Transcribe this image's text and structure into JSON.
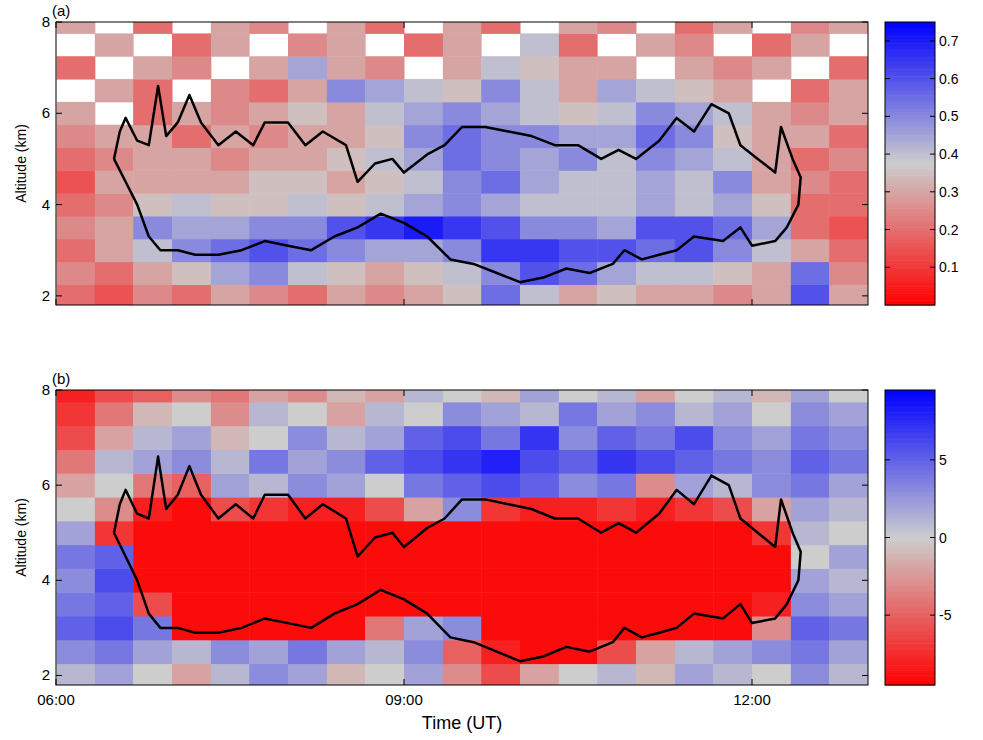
{
  "chart_data": [
    {
      "type": "heatmap",
      "panel": "(a)",
      "ylabel": "Altitude (km)",
      "xlim": [
        6,
        13
      ],
      "ylim": [
        1.8,
        8
      ],
      "xticks": [
        {
          "value": 6,
          "label": "06:00"
        },
        {
          "value": 9,
          "label": "09:00"
        },
        {
          "value": 12,
          "label": "12:00"
        }
      ],
      "yticks": [
        2,
        4,
        6,
        8
      ],
      "tick_labels": "y",
      "x": [
        6.17,
        6.5,
        6.83,
        7.17,
        7.5,
        7.83,
        8.17,
        8.5,
        8.83,
        9.17,
        9.5,
        9.83,
        10.17,
        10.5,
        10.83,
        11.17,
        11.5,
        11.83,
        12.17,
        12.5,
        12.83
      ],
      "y": [
        2,
        2.5,
        3,
        3.5,
        4,
        4.5,
        5,
        5.5,
        6,
        6.5,
        7,
        7.5,
        8
      ],
      "z": [
        [
          0.2,
          0.15,
          0.25,
          0.2,
          0.3,
          0.25,
          0.2,
          0.3,
          0.25,
          0.3,
          0.35,
          0.55,
          0.4,
          0.3,
          0.35,
          0.3,
          0.3,
          0.25,
          0.3,
          0.6,
          0.3
        ],
        [
          0.25,
          0.2,
          0.3,
          0.35,
          0.45,
          0.5,
          0.4,
          0.35,
          0.3,
          0.35,
          0.4,
          0.5,
          0.6,
          0.55,
          0.45,
          0.4,
          0.4,
          0.35,
          0.3,
          0.55,
          0.25
        ],
        [
          0.2,
          0.3,
          0.4,
          0.5,
          0.55,
          0.6,
          0.55,
          0.5,
          0.45,
          0.45,
          0.5,
          0.65,
          0.65,
          0.6,
          0.6,
          0.55,
          0.6,
          0.5,
          0.4,
          0.3,
          0.2
        ],
        [
          0.25,
          0.3,
          0.5,
          0.45,
          0.45,
          0.5,
          0.5,
          0.6,
          0.65,
          0.7,
          0.65,
          0.6,
          0.5,
          0.5,
          0.45,
          0.6,
          0.6,
          0.55,
          0.45,
          0.2,
          0.15
        ],
        [
          0.2,
          0.25,
          0.35,
          0.4,
          0.35,
          0.35,
          0.4,
          0.35,
          0.4,
          0.45,
          0.5,
          0.45,
          0.4,
          0.4,
          0.4,
          0.45,
          0.4,
          0.45,
          0.35,
          0.2,
          0.2
        ],
        [
          0.15,
          0.3,
          0.3,
          0.3,
          0.3,
          0.35,
          0.35,
          0.3,
          0.35,
          0.4,
          0.5,
          0.55,
          0.45,
          0.4,
          0.4,
          0.45,
          0.4,
          0.5,
          0.3,
          0.25,
          0.2
        ],
        [
          0.2,
          0.25,
          0.3,
          0.3,
          0.25,
          0.3,
          0.3,
          0.35,
          0.4,
          0.45,
          0.55,
          0.5,
          0.45,
          0.5,
          0.4,
          0.5,
          0.45,
          0.4,
          0.3,
          0.2,
          0.25
        ],
        [
          0.25,
          0.3,
          0.3,
          0.2,
          0.3,
          0.25,
          0.3,
          0.3,
          0.35,
          0.5,
          0.55,
          0.5,
          0.5,
          0.45,
          0.45,
          0.55,
          0.5,
          0.35,
          0.3,
          0.3,
          0.2
        ],
        [
          0.3,
          null,
          0.2,
          0.3,
          0.25,
          0.3,
          0.35,
          0.3,
          0.4,
          0.45,
          0.5,
          0.45,
          0.4,
          0.35,
          0.4,
          0.5,
          0.45,
          0.4,
          0.3,
          0.25,
          0.3
        ],
        [
          null,
          0.3,
          0.2,
          null,
          0.25,
          0.2,
          0.3,
          0.5,
          0.45,
          0.4,
          0.35,
          0.5,
          0.4,
          0.3,
          0.45,
          0.4,
          0.35,
          0.3,
          null,
          0.2,
          0.3
        ],
        [
          0.2,
          null,
          0.3,
          0.25,
          null,
          0.3,
          0.45,
          0.3,
          0.25,
          null,
          0.3,
          0.4,
          0.35,
          0.3,
          0.3,
          null,
          0.3,
          0.25,
          0.3,
          null,
          0.2
        ],
        [
          null,
          0.3,
          null,
          0.2,
          0.3,
          null,
          0.25,
          0.3,
          null,
          0.2,
          0.3,
          null,
          0.4,
          0.2,
          null,
          0.3,
          0.25,
          null,
          0.2,
          0.3,
          null
        ],
        [
          0.3,
          null,
          0.2,
          null,
          0.3,
          0.25,
          null,
          0.3,
          0.2,
          null,
          0.3,
          0.2,
          null,
          0.3,
          0.25,
          null,
          0.2,
          0.3,
          null,
          0.25,
          0.3
        ]
      ],
      "colorbar": {
        "lim": [
          0,
          0.75
        ],
        "ticks": [
          0.1,
          0.2,
          0.3,
          0.4,
          0.5,
          0.6,
          0.7
        ]
      },
      "contour": {
        "x": [
          6.5,
          6.55,
          6.6,
          6.7,
          6.8,
          6.88,
          6.95,
          7.05,
          7.15,
          7.25,
          7.4,
          7.55,
          7.7,
          7.8,
          8.0,
          8.15,
          8.3,
          8.5,
          8.6,
          8.75,
          8.9,
          9.0,
          9.2,
          9.35,
          9.5,
          9.7,
          9.9,
          10.1,
          10.3,
          10.5,
          10.7,
          10.85,
          11.0,
          11.2,
          11.35,
          11.5,
          11.65,
          11.8,
          11.9,
          12.05,
          12.2,
          12.25,
          12.35,
          12.42,
          12.4,
          12.3,
          12.2,
          12.0,
          11.9,
          11.75,
          11.5,
          11.35,
          11.2,
          11.05,
          10.9,
          10.8,
          10.6,
          10.4,
          10.2,
          10.0,
          9.8,
          9.6,
          9.4,
          9.2,
          9.0,
          8.8,
          8.6,
          8.4,
          8.2,
          8.0,
          7.8,
          7.6,
          7.4,
          7.2,
          7.05,
          6.9,
          6.8,
          6.7,
          6.6,
          6.5
        ],
        "y": [
          5.0,
          5.6,
          5.9,
          5.4,
          5.3,
          6.6,
          5.5,
          5.8,
          6.4,
          5.8,
          5.3,
          5.6,
          5.3,
          5.8,
          5.8,
          5.3,
          5.6,
          5.3,
          4.5,
          4.9,
          5.0,
          4.7,
          5.1,
          5.3,
          5.7,
          5.7,
          5.6,
          5.5,
          5.3,
          5.3,
          5.0,
          5.2,
          5.0,
          5.4,
          5.9,
          5.6,
          6.2,
          6.0,
          5.3,
          5.0,
          4.7,
          5.7,
          5.0,
          4.6,
          4.0,
          3.5,
          3.2,
          3.1,
          3.5,
          3.2,
          3.3,
          3.0,
          2.9,
          2.8,
          3.0,
          2.7,
          2.5,
          2.6,
          2.4,
          2.3,
          2.5,
          2.7,
          2.8,
          3.3,
          3.6,
          3.8,
          3.5,
          3.3,
          3.0,
          3.1,
          3.2,
          3.0,
          2.9,
          2.9,
          3.0,
          3.0,
          3.3,
          4.0,
          4.5,
          5.0
        ]
      }
    },
    {
      "type": "heatmap",
      "panel": "(b)",
      "ylabel": "Altitude (km)",
      "xlabel": "Time (UT)",
      "xlim": [
        6,
        13
      ],
      "ylim": [
        1.8,
        8
      ],
      "xticks": [
        {
          "value": 6,
          "label": "06:00"
        },
        {
          "value": 9,
          "label": "09:00"
        },
        {
          "value": 12,
          "label": "12:00"
        }
      ],
      "yticks": [
        2,
        4,
        6,
        8
      ],
      "x": [
        6.17,
        6.5,
        6.83,
        7.17,
        7.5,
        7.83,
        8.17,
        8.5,
        8.83,
        9.17,
        9.5,
        9.83,
        10.17,
        10.5,
        10.83,
        11.17,
        11.5,
        11.83,
        12.17,
        12.5,
        12.83
      ],
      "y": [
        2,
        2.5,
        3,
        3.5,
        4,
        4.5,
        5,
        5.5,
        6,
        6.5,
        7,
        7.5,
        8
      ],
      "z": [
        [
          1,
          2,
          0,
          -2,
          1,
          3,
          2,
          -1,
          0,
          2,
          -3,
          -6,
          -2,
          0,
          1,
          -1,
          2,
          1,
          0,
          3,
          1
        ],
        [
          3,
          4,
          2,
          1,
          3,
          2,
          4,
          2,
          1,
          3,
          -5,
          -8,
          -9,
          -9,
          -6,
          -2,
          1,
          2,
          3,
          4,
          2
        ],
        [
          5,
          6,
          4,
          -9,
          -9,
          -9,
          -9,
          -9,
          -4,
          2,
          3,
          -9,
          -9,
          -9,
          -9,
          -9,
          -9,
          -9,
          -3,
          5,
          4
        ],
        [
          4,
          5,
          -6,
          -9,
          -9,
          -9,
          -9,
          -9,
          -9,
          -9,
          -9,
          -9,
          -9,
          -9,
          -9,
          -9,
          -9,
          -9,
          -8,
          3,
          2
        ],
        [
          3,
          6,
          -9,
          -9,
          -9,
          -9,
          -9,
          -9,
          -9,
          -9,
          -9,
          -9,
          -9,
          -9,
          -9,
          -9,
          -9,
          -9,
          -9,
          2,
          1
        ],
        [
          4,
          5,
          -9,
          -9,
          -9,
          -9,
          -9,
          -9,
          -9,
          -9,
          -9,
          -9,
          -9,
          -9,
          -9,
          -9,
          -9,
          -9,
          -9,
          0,
          2
        ],
        [
          2,
          -7,
          -9,
          -9,
          -9,
          -9,
          -9,
          -9,
          -9,
          -9,
          -9,
          -9,
          -9,
          -9,
          -9,
          -9,
          -9,
          -9,
          -7,
          1,
          0
        ],
        [
          0,
          -3,
          -8,
          -9,
          -6,
          -7,
          -8,
          -8,
          -6,
          -2,
          3,
          -7,
          -8,
          -8,
          -7,
          -8,
          -7,
          -6,
          -2,
          2,
          1
        ],
        [
          -2,
          0,
          -4,
          -5,
          2,
          1,
          3,
          2,
          0,
          4,
          5,
          6,
          5,
          3,
          4,
          -3,
          2,
          1,
          3,
          4,
          2
        ],
        [
          -4,
          1,
          2,
          3,
          1,
          4,
          2,
          3,
          5,
          6,
          7,
          8,
          6,
          5,
          7,
          6,
          5,
          4,
          3,
          5,
          4
        ],
        [
          -6,
          -2,
          1,
          2,
          -1,
          0,
          3,
          1,
          2,
          5,
          6,
          4,
          7,
          3,
          5,
          4,
          6,
          3,
          2,
          4,
          3
        ],
        [
          -7,
          -4,
          -1,
          0,
          -3,
          1,
          0,
          -2,
          1,
          0,
          3,
          2,
          1,
          4,
          2,
          3,
          1,
          2,
          0,
          3,
          2
        ],
        [
          -8,
          -6,
          -5,
          -3,
          -4,
          -2,
          -3,
          -1,
          -2,
          1,
          0,
          -1,
          2,
          0,
          1,
          -2,
          0,
          1,
          -1,
          2,
          0
        ]
      ],
      "colorbar": {
        "lim": [
          -9.5,
          9.5
        ],
        "ticks": [
          -5,
          0,
          5
        ]
      },
      "contour": {
        "x": [
          6.5,
          6.55,
          6.6,
          6.7,
          6.8,
          6.88,
          6.95,
          7.05,
          7.15,
          7.25,
          7.4,
          7.55,
          7.7,
          7.8,
          8.0,
          8.15,
          8.3,
          8.5,
          8.6,
          8.75,
          8.9,
          9.0,
          9.2,
          9.35,
          9.5,
          9.7,
          9.9,
          10.1,
          10.3,
          10.5,
          10.7,
          10.85,
          11.0,
          11.2,
          11.35,
          11.5,
          11.65,
          11.8,
          11.9,
          12.05,
          12.2,
          12.25,
          12.35,
          12.42,
          12.4,
          12.3,
          12.2,
          12.0,
          11.9,
          11.75,
          11.5,
          11.35,
          11.2,
          11.05,
          10.9,
          10.8,
          10.6,
          10.4,
          10.2,
          10.0,
          9.8,
          9.6,
          9.4,
          9.2,
          9.0,
          8.8,
          8.6,
          8.4,
          8.2,
          8.0,
          7.8,
          7.6,
          7.4,
          7.2,
          7.05,
          6.9,
          6.8,
          6.7,
          6.6,
          6.5
        ],
        "y": [
          5.0,
          5.6,
          5.9,
          5.4,
          5.3,
          6.6,
          5.5,
          5.8,
          6.4,
          5.8,
          5.3,
          5.6,
          5.3,
          5.8,
          5.8,
          5.3,
          5.6,
          5.3,
          4.5,
          4.9,
          5.0,
          4.7,
          5.1,
          5.3,
          5.7,
          5.7,
          5.6,
          5.5,
          5.3,
          5.3,
          5.0,
          5.2,
          5.0,
          5.4,
          5.9,
          5.6,
          6.2,
          6.0,
          5.3,
          5.0,
          4.7,
          5.7,
          5.0,
          4.6,
          4.0,
          3.5,
          3.2,
          3.1,
          3.5,
          3.2,
          3.3,
          3.0,
          2.9,
          2.8,
          3.0,
          2.7,
          2.5,
          2.6,
          2.4,
          2.3,
          2.5,
          2.7,
          2.8,
          3.3,
          3.6,
          3.8,
          3.5,
          3.3,
          3.0,
          3.1,
          3.2,
          3.0,
          2.9,
          2.9,
          3.0,
          3.0,
          3.3,
          4.0,
          4.5,
          5.0
        ]
      }
    }
  ]
}
